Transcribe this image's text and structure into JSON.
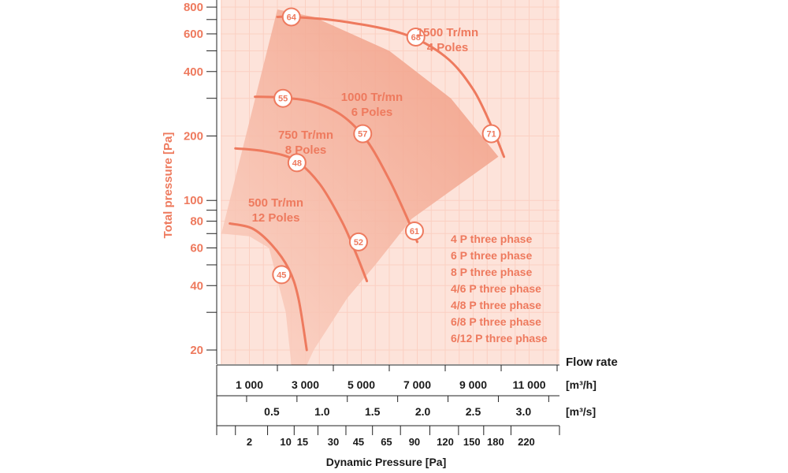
{
  "chart_data": {
    "type": "line",
    "ylabel": "Total pressure [Pa]",
    "yscale": "log",
    "ylim": [
      18,
      850
    ],
    "yticks_labeled": [
      20,
      40,
      60,
      80,
      100,
      200,
      400,
      600,
      800
    ],
    "yticks_minor": [
      30,
      50,
      70,
      90,
      300,
      500,
      700
    ],
    "flow_axis_title": "Flow rate",
    "x_m3h": {
      "unit": "[m³/h]",
      "xlim": [
        0,
        12000
      ],
      "ticks": [
        1000,
        3000,
        5000,
        7000,
        9000,
        11000
      ],
      "tick_labels": [
        "1 000",
        "3 000",
        "5 000",
        "7 000",
        "9 000",
        "11 000"
      ]
    },
    "x_m3s": {
      "unit": "[m³/s]",
      "ticks": [
        0.5,
        1.0,
        1.5,
        2.0,
        2.5,
        3.0
      ],
      "tick_labels": [
        "0.5",
        "1.0",
        "1.5",
        "2.0",
        "2.5",
        "3.0"
      ]
    },
    "x_dynamic": {
      "label": "Dynamic Pressure [Pa]",
      "ticks": [
        2,
        10,
        15,
        30,
        45,
        65,
        90,
        120,
        150,
        180,
        220
      ],
      "tick_labels": [
        "2",
        "10",
        "15",
        "30",
        "45",
        "65",
        "90",
        "120",
        "150",
        "180",
        "220"
      ],
      "flow_at_tick": [
        1000,
        2300,
        2900,
        4000,
        4900,
        5900,
        6900,
        8000,
        8950,
        9800,
        10900
      ]
    },
    "operating_region": [
      [
        0,
        70
      ],
      [
        2000,
        780
      ],
      [
        3300,
        720
      ],
      [
        6000,
        500
      ],
      [
        8200,
        300
      ],
      [
        9900,
        160
      ],
      [
        6800,
        82
      ],
      [
        5500,
        50
      ],
      [
        4500,
        35
      ],
      [
        3300,
        20
      ],
      [
        3050,
        17
      ],
      [
        2500,
        17
      ],
      [
        2300,
        30
      ],
      [
        1700,
        60
      ],
      [
        1000,
        68
      ]
    ],
    "series": [
      {
        "name": "1500 Tr/mn",
        "label_lines": [
          "1500 Tr/mn",
          "4 Poles"
        ],
        "points": [
          [
            2000,
            720
          ],
          [
            2500,
            720
          ],
          [
            4200,
            690
          ],
          [
            6500,
            600
          ],
          [
            8000,
            470
          ],
          [
            9000,
            330
          ],
          [
            9700,
            215
          ],
          [
            10100,
            160
          ]
        ],
        "markers": [
          {
            "x": 2500,
            "y": 720,
            "label": "64"
          },
          {
            "x": 6950,
            "y": 580,
            "label": "68"
          },
          {
            "x": 9650,
            "y": 205,
            "label": "71"
          }
        ]
      },
      {
        "name": "1000 Tr/mn",
        "label_lines": [
          "1000 Tr/mn",
          "6 Poles"
        ],
        "points": [
          [
            1200,
            305
          ],
          [
            2000,
            303
          ],
          [
            3200,
            290
          ],
          [
            4300,
            250
          ],
          [
            5200,
            190
          ],
          [
            6000,
            125
          ],
          [
            6600,
            85
          ],
          [
            7000,
            64
          ]
        ],
        "markers": [
          {
            "x": 2200,
            "y": 300,
            "label": "55"
          },
          {
            "x": 5050,
            "y": 205,
            "label": "57"
          },
          {
            "x": 6900,
            "y": 72,
            "label": "61"
          }
        ]
      },
      {
        "name": "750 Tr/mn",
        "label_lines": [
          "750 Tr/mn",
          "8 Poles"
        ],
        "points": [
          [
            500,
            175
          ],
          [
            1500,
            170
          ],
          [
            2600,
            155
          ],
          [
            3500,
            120
          ],
          [
            4300,
            80
          ],
          [
            4800,
            57
          ],
          [
            5200,
            42
          ]
        ],
        "markers": [
          {
            "x": 2700,
            "y": 150,
            "label": "48"
          },
          {
            "x": 4900,
            "y": 64,
            "label": "52"
          }
        ]
      },
      {
        "name": "500 Tr/mn",
        "label_lines": [
          "500 Tr/mn",
          "12 Poles"
        ],
        "points": [
          [
            300,
            78
          ],
          [
            1100,
            74
          ],
          [
            1800,
            62
          ],
          [
            2400,
            48
          ],
          [
            2750,
            35
          ],
          [
            3050,
            20
          ]
        ],
        "markers": [
          {
            "x": 2150,
            "y": 45,
            "label": "45"
          }
        ]
      }
    ],
    "legend": [
      "4 P three phase",
      "6 P three phase",
      "8 P three phase",
      "4/6 P three phase",
      "4/8 P three phase",
      "6/8 P three phase",
      "6/12 P three phase"
    ],
    "grid": true,
    "colors": {
      "accent": "#ee7a5e",
      "region": "#f6b5a2",
      "background": "#fde3da",
      "grid": "#fbd0c2"
    }
  }
}
